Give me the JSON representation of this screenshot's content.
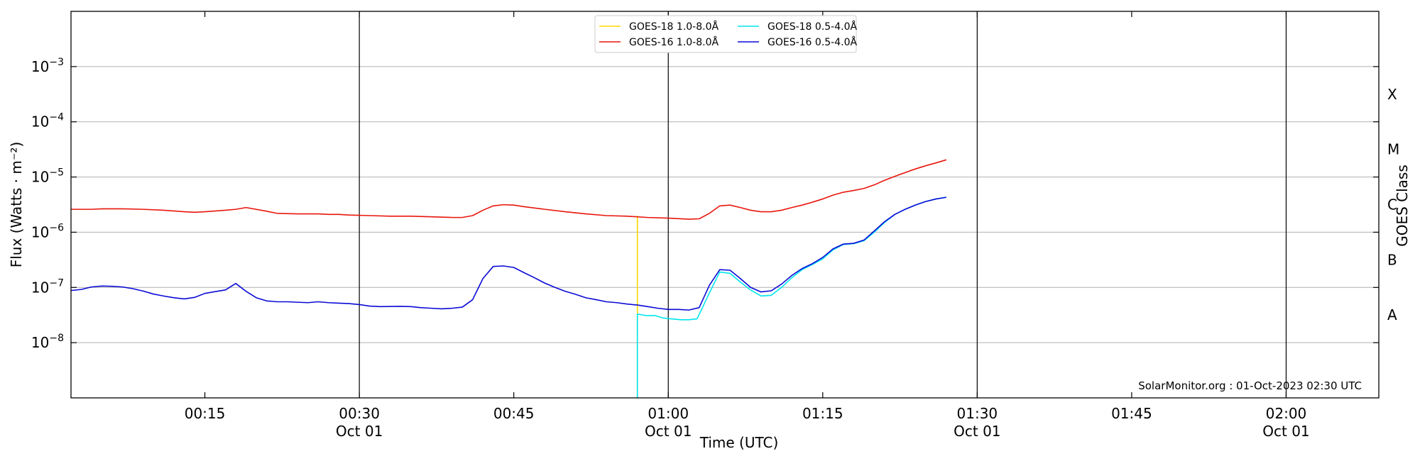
{
  "chart_data": {
    "type": "line",
    "ylabel": "Flux (Watts · m⁻²)",
    "xlabel": "Time (UTC)",
    "right_label": "GOES Class",
    "credit": "SolarMonitor.org : 01-Oct-2023 02:30 UTC",
    "x_unit": "minutes after 00:00 UTC, 01-Oct-2023",
    "xlim": [
      2,
      129
    ],
    "ylog": true,
    "ylim": [
      1e-09,
      0.01
    ],
    "grid": "horizontal",
    "legend_position": "top-center",
    "y_ticks": [
      {
        "value": 1e-08,
        "base": "10",
        "exp": "−8"
      },
      {
        "value": 1e-07,
        "base": "10",
        "exp": "−7"
      },
      {
        "value": 1e-06,
        "base": "10",
        "exp": "−6"
      },
      {
        "value": 1e-05,
        "base": "10",
        "exp": "−5"
      },
      {
        "value": 0.0001,
        "base": "10",
        "exp": "−4"
      },
      {
        "value": 0.001,
        "base": "10",
        "exp": "−3"
      }
    ],
    "x_ticks": [
      {
        "value": 15,
        "label": "00:15",
        "sub": ""
      },
      {
        "value": 30,
        "label": "00:30",
        "sub": "Oct 01"
      },
      {
        "value": 45,
        "label": "00:45",
        "sub": ""
      },
      {
        "value": 60,
        "label": "01:00",
        "sub": "Oct 01"
      },
      {
        "value": 75,
        "label": "01:15",
        "sub": ""
      },
      {
        "value": 90,
        "label": "01:30",
        "sub": "Oct 01"
      },
      {
        "value": 105,
        "label": "01:45",
        "sub": ""
      },
      {
        "value": 120,
        "label": "02:00",
        "sub": "Oct 01"
      }
    ],
    "vlines": [
      30,
      60,
      90,
      120
    ],
    "goes_classes": [
      {
        "label": "A",
        "value": 3.16e-08
      },
      {
        "label": "B",
        "value": 3.16e-07
      },
      {
        "label": "C",
        "value": 3.16e-06
      },
      {
        "label": "M",
        "value": 3.16e-05
      },
      {
        "label": "X",
        "value": 0.000316
      }
    ],
    "series": [
      {
        "name": "GOES-18 1.0-8.0Å",
        "color": "#ffd700",
        "points": [
          [
            57,
            2e-06
          ],
          [
            57,
            1e-09
          ]
        ]
      },
      {
        "name": "GOES-18 0.5-4.0Å",
        "color": "#00e5ee",
        "points": [
          [
            57,
            1e-09
          ],
          [
            57,
            3.3e-08
          ],
          [
            57.8,
            3.1e-08
          ],
          [
            58.7,
            3.1e-08
          ],
          [
            59.5,
            2.8e-08
          ],
          [
            60.3,
            2.7e-08
          ],
          [
            61.2,
            2.6e-08
          ],
          [
            62,
            2.6e-08
          ],
          [
            62.8,
            2.7e-08
          ],
          [
            64,
            8e-08
          ],
          [
            65,
            1.9e-07
          ],
          [
            66,
            1.8e-07
          ],
          [
            67,
            1.25e-07
          ],
          [
            68,
            9e-08
          ],
          [
            69,
            7e-08
          ],
          [
            70,
            7.2e-08
          ],
          [
            71,
            1e-07
          ],
          [
            72,
            1.5e-07
          ],
          [
            73,
            2.1e-07
          ],
          [
            74,
            2.6e-07
          ],
          [
            75,
            3.3e-07
          ],
          [
            76,
            4.8e-07
          ],
          [
            77,
            6e-07
          ],
          [
            78,
            6.2e-07
          ],
          [
            79,
            7e-07
          ],
          [
            80,
            1e-06
          ],
          [
            81,
            1.5e-06
          ],
          [
            82,
            2.1e-06
          ],
          [
            83,
            2.6e-06
          ],
          [
            84,
            3.1e-06
          ],
          [
            85,
            3.6e-06
          ],
          [
            86,
            4e-06
          ],
          [
            87,
            4.3e-06
          ]
        ]
      },
      {
        "name": "GOES-16 1.0-8.0Å",
        "color": "#e8160c",
        "points": [
          [
            2,
            2.6e-06
          ],
          [
            4,
            2.6e-06
          ],
          [
            5,
            2.65e-06
          ],
          [
            7,
            2.65e-06
          ],
          [
            9,
            2.6e-06
          ],
          [
            11,
            2.5e-06
          ],
          [
            13,
            2.35e-06
          ],
          [
            14,
            2.3e-06
          ],
          [
            15,
            2.35e-06
          ],
          [
            17,
            2.5e-06
          ],
          [
            18,
            2.6e-06
          ],
          [
            19,
            2.8e-06
          ],
          [
            21,
            2.4e-06
          ],
          [
            22,
            2.2e-06
          ],
          [
            24,
            2.15e-06
          ],
          [
            26,
            2.15e-06
          ],
          [
            27,
            2.1e-06
          ],
          [
            28,
            2.1e-06
          ],
          [
            29,
            2.05e-06
          ],
          [
            31,
            2e-06
          ],
          [
            33,
            1.95e-06
          ],
          [
            35,
            1.95e-06
          ],
          [
            37,
            1.9e-06
          ],
          [
            39,
            1.85e-06
          ],
          [
            40,
            1.85e-06
          ],
          [
            41,
            2e-06
          ],
          [
            42,
            2.5e-06
          ],
          [
            43,
            3e-06
          ],
          [
            44,
            3.15e-06
          ],
          [
            45,
            3.1e-06
          ],
          [
            46,
            2.9e-06
          ],
          [
            48,
            2.6e-06
          ],
          [
            50,
            2.35e-06
          ],
          [
            52,
            2.15e-06
          ],
          [
            54,
            2e-06
          ],
          [
            56,
            1.95e-06
          ],
          [
            58,
            1.85e-06
          ],
          [
            60,
            1.8e-06
          ],
          [
            62,
            1.72e-06
          ],
          [
            63,
            1.75e-06
          ],
          [
            64,
            2.2e-06
          ],
          [
            65,
            3e-06
          ],
          [
            66,
            3.1e-06
          ],
          [
            67,
            2.8e-06
          ],
          [
            68,
            2.5e-06
          ],
          [
            69,
            2.35e-06
          ],
          [
            70,
            2.35e-06
          ],
          [
            71,
            2.5e-06
          ],
          [
            72,
            2.8e-06
          ],
          [
            73,
            3.1e-06
          ],
          [
            74,
            3.5e-06
          ],
          [
            75,
            4e-06
          ],
          [
            76,
            4.7e-06
          ],
          [
            77,
            5.3e-06
          ],
          [
            78,
            5.7e-06
          ],
          [
            79,
            6.2e-06
          ],
          [
            80,
            7.2e-06
          ],
          [
            81,
            8.7e-06
          ],
          [
            82,
            1.03e-05
          ],
          [
            83,
            1.2e-05
          ],
          [
            84,
            1.4e-05
          ],
          [
            85,
            1.6e-05
          ],
          [
            86,
            1.8e-05
          ],
          [
            87,
            2.05e-05
          ]
        ]
      },
      {
        "name": "GOES-16 0.5-4.0Å",
        "color": "#0a0ad6",
        "points": [
          [
            2,
            8.8e-08
          ],
          [
            3,
            9.2e-08
          ],
          [
            4,
            1.02e-07
          ],
          [
            5,
            1.06e-07
          ],
          [
            6,
            1.05e-07
          ],
          [
            7,
            1.02e-07
          ],
          [
            8,
            9.5e-08
          ],
          [
            9,
            8.6e-08
          ],
          [
            10,
            7.6e-08
          ],
          [
            11,
            7e-08
          ],
          [
            12,
            6.5e-08
          ],
          [
            13,
            6.2e-08
          ],
          [
            14,
            6.6e-08
          ],
          [
            15,
            7.8e-08
          ],
          [
            16,
            8.4e-08
          ],
          [
            17,
            9e-08
          ],
          [
            18,
            1.18e-07
          ],
          [
            19,
            8.5e-08
          ],
          [
            20,
            6.5e-08
          ],
          [
            21,
            5.7e-08
          ],
          [
            22,
            5.5e-08
          ],
          [
            23,
            5.5e-08
          ],
          [
            24,
            5.4e-08
          ],
          [
            25,
            5.3e-08
          ],
          [
            26,
            5.5e-08
          ],
          [
            27,
            5.3e-08
          ],
          [
            28,
            5.2e-08
          ],
          [
            29,
            5.1e-08
          ],
          [
            30,
            4.9e-08
          ],
          [
            31,
            4.6e-08
          ],
          [
            32,
            4.5e-08
          ],
          [
            34,
            4.55e-08
          ],
          [
            35,
            4.5e-08
          ],
          [
            36,
            4.3e-08
          ],
          [
            37,
            4.2e-08
          ],
          [
            38,
            4.1e-08
          ],
          [
            39,
            4.2e-08
          ],
          [
            40,
            4.4e-08
          ],
          [
            41,
            6e-08
          ],
          [
            42,
            1.45e-07
          ],
          [
            43,
            2.4e-07
          ],
          [
            44,
            2.45e-07
          ],
          [
            45,
            2.3e-07
          ],
          [
            46,
            1.85e-07
          ],
          [
            47,
            1.5e-07
          ],
          [
            48,
            1.2e-07
          ],
          [
            49,
            1e-07
          ],
          [
            50,
            8.5e-08
          ],
          [
            51,
            7.5e-08
          ],
          [
            52,
            6.5e-08
          ],
          [
            53,
            6e-08
          ],
          [
            54,
            5.5e-08
          ],
          [
            55,
            5.3e-08
          ],
          [
            56,
            5e-08
          ],
          [
            57,
            4.8e-08
          ],
          [
            58,
            4.5e-08
          ],
          [
            59,
            4.2e-08
          ],
          [
            60,
            4e-08
          ],
          [
            61,
            4e-08
          ],
          [
            62,
            3.9e-08
          ],
          [
            63,
            4.3e-08
          ],
          [
            64,
            1.1e-07
          ],
          [
            65,
            2.1e-07
          ],
          [
            66,
            2.05e-07
          ],
          [
            67,
            1.45e-07
          ],
          [
            68,
            1e-07
          ],
          [
            69,
            8.3e-08
          ],
          [
            70,
            8.7e-08
          ],
          [
            71,
            1.15e-07
          ],
          [
            72,
            1.65e-07
          ],
          [
            73,
            2.2e-07
          ],
          [
            74,
            2.7e-07
          ],
          [
            75,
            3.5e-07
          ],
          [
            76,
            5e-07
          ],
          [
            77,
            6.1e-07
          ],
          [
            78,
            6.3e-07
          ],
          [
            79,
            7.2e-07
          ],
          [
            80,
            1.05e-06
          ],
          [
            81,
            1.55e-06
          ],
          [
            82,
            2.1e-06
          ],
          [
            83,
            2.6e-06
          ],
          [
            84,
            3.1e-06
          ],
          [
            85,
            3.6e-06
          ],
          [
            86,
            4e-06
          ],
          [
            87,
            4.3e-06
          ]
        ]
      }
    ],
    "legend_order": [
      0,
      1,
      2,
      3
    ]
  }
}
